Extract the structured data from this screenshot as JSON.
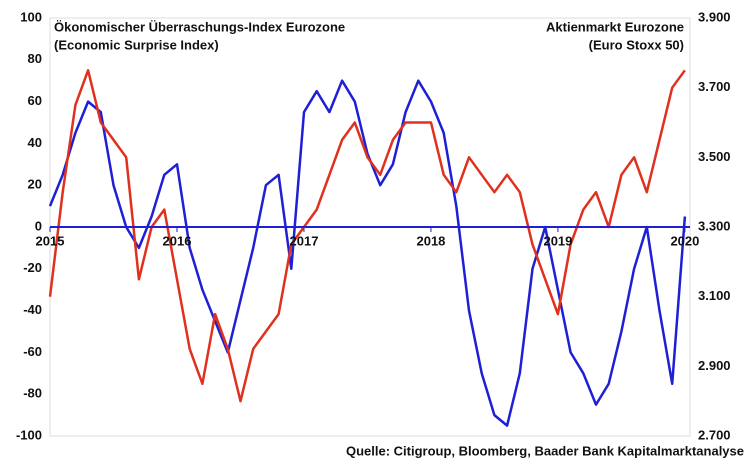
{
  "chart_data": {
    "type": "line",
    "source": "Quelle: Citigroup, Bloomberg, Baader Bank Kapitalmarktanalyse",
    "x": [
      2015.0,
      2015.1,
      2015.2,
      2015.3,
      2015.4,
      2015.5,
      2015.6,
      2015.7,
      2015.8,
      2015.9,
      2016.0,
      2016.1,
      2016.2,
      2016.3,
      2016.4,
      2016.5,
      2016.6,
      2016.7,
      2016.8,
      2016.9,
      2017.0,
      2017.1,
      2017.2,
      2017.3,
      2017.4,
      2017.5,
      2017.6,
      2017.7,
      2017.8,
      2017.9,
      2018.0,
      2018.1,
      2018.2,
      2018.3,
      2018.4,
      2018.5,
      2018.6,
      2018.7,
      2018.8,
      2018.9,
      2019.0,
      2019.1,
      2019.2,
      2019.3,
      2019.4,
      2019.5,
      2019.6,
      2019.7,
      2019.8,
      2019.9,
      2020.0
    ],
    "series": [
      {
        "name": "Ökonomischer Überraschungs-Index Eurozone",
        "note": "(Economic Surprise Index)",
        "color": "#1f1fd6",
        "axis": "y",
        "values": [
          10,
          25,
          45,
          60,
          55,
          20,
          0,
          -10,
          5,
          25,
          30,
          -10,
          -30,
          -45,
          -60,
          -35,
          -10,
          20,
          25,
          -20,
          55,
          65,
          55,
          70,
          60,
          35,
          20,
          30,
          55,
          70,
          60,
          45,
          10,
          -40,
          -70,
          -90,
          -95,
          -70,
          -20,
          0,
          -30,
          -60,
          -70,
          -85,
          -75,
          -50,
          -20,
          0,
          -40,
          -75,
          5
        ]
      },
      {
        "name": "Aktienmarkt Eurozone",
        "note": "(Euro Stoxx 50)",
        "color": "#e0301e",
        "axis": "y2",
        "values": [
          3100,
          3400,
          3650,
          3750,
          3600,
          3550,
          3500,
          3150,
          3300,
          3350,
          3150,
          2950,
          2850,
          3050,
          2950,
          2800,
          2950,
          3000,
          3050,
          3250,
          3300,
          3350,
          3450,
          3550,
          3600,
          3500,
          3450,
          3550,
          3600,
          3600,
          3600,
          3450,
          3400,
          3500,
          3450,
          3400,
          3450,
          3400,
          3250,
          3150,
          3050,
          3250,
          3350,
          3400,
          3300,
          3450,
          3500,
          3400,
          3550,
          3700,
          3750
        ]
      }
    ],
    "xlim": [
      2015,
      2020.04
    ],
    "xticks": [
      2015,
      2016,
      2017,
      2018,
      2019,
      2020
    ],
    "ylim": [
      -100,
      100
    ],
    "yticks": [
      -100,
      -80,
      -60,
      -40,
      -20,
      0,
      20,
      40,
      60,
      80,
      100
    ],
    "y2lim": [
      2700,
      3900
    ],
    "y2ticks": [
      {
        "value": 2700,
        "label": "2.700"
      },
      {
        "value": 2900,
        "label": "2.900"
      },
      {
        "value": 3100,
        "label": "3.100"
      },
      {
        "value": 3300,
        "label": "3.300"
      },
      {
        "value": 3500,
        "label": "3.500"
      },
      {
        "value": 3700,
        "label": "3.700"
      },
      {
        "value": 3900,
        "label": "3.900"
      }
    ],
    "zero_line": true
  }
}
